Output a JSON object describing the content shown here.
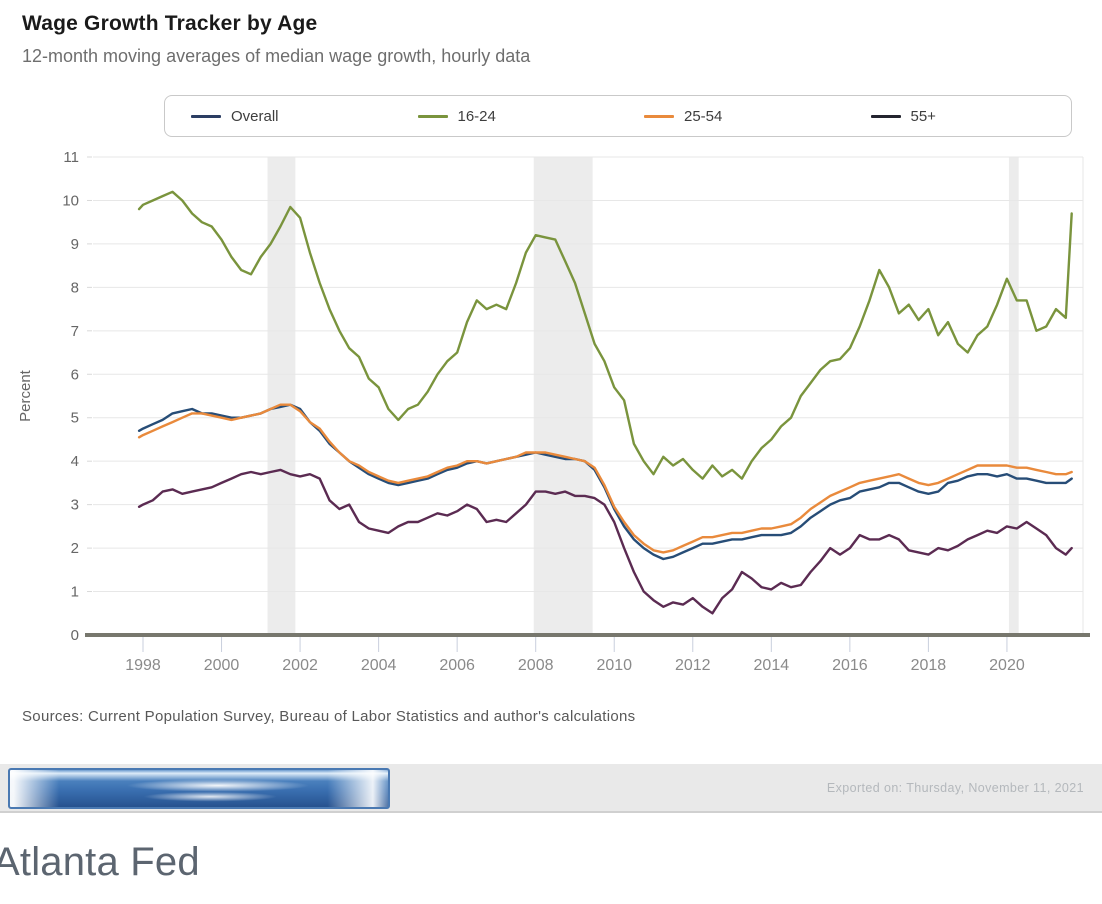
{
  "header": {
    "title": "Wage Growth Tracker by Age",
    "subtitle": "12-month moving averages of median wage growth, hourly data"
  },
  "sources": "Sources: Current Population Survey, Bureau of Labor Statistics and author's calculations",
  "footer": {
    "exported_label": "Exported on: Thursday, November 11, 2021",
    "brand": "Atlanta Fed"
  },
  "chart_data": {
    "type": "line",
    "title": "Wage Growth Tracker by Age",
    "xlabel": "",
    "ylabel": "Percent",
    "ylim": [
      0,
      11
    ],
    "ytick_step": 1,
    "xlim": [
      1996.7,
      2021.9
    ],
    "xticks": [
      1998,
      2000,
      2002,
      2004,
      2006,
      2008,
      2010,
      2012,
      2014,
      2016,
      2018,
      2020
    ],
    "grid": true,
    "legend_position": "top",
    "colors": {
      "grid": "#e7e7e7",
      "axis": "#77776d",
      "tick": "#c9cfdd",
      "tick_label": "#8a8a8a",
      "y_label": "#666666",
      "band": "#ececec"
    },
    "recession_bands": [
      {
        "start": 2001.17,
        "end": 2001.88
      },
      {
        "start": 2007.95,
        "end": 2009.45
      },
      {
        "start": 2020.05,
        "end": 2020.3
      }
    ],
    "x": [
      1997.9,
      1998,
      1998.25,
      1998.5,
      1998.75,
      1999,
      1999.25,
      1999.5,
      1999.75,
      2000,
      2000.25,
      2000.5,
      2000.75,
      2001,
      2001.25,
      2001.5,
      2001.75,
      2002,
      2002.25,
      2002.5,
      2002.75,
      2003,
      2003.25,
      2003.5,
      2003.75,
      2004,
      2004.25,
      2004.5,
      2004.75,
      2005,
      2005.25,
      2005.5,
      2005.75,
      2006,
      2006.25,
      2006.5,
      2006.75,
      2007,
      2007.25,
      2007.5,
      2007.75,
      2008,
      2008.25,
      2008.5,
      2008.75,
      2009,
      2009.25,
      2009.5,
      2009.75,
      2010,
      2010.25,
      2010.5,
      2010.75,
      2011,
      2011.25,
      2011.5,
      2011.75,
      2012,
      2012.25,
      2012.5,
      2012.75,
      2013,
      2013.25,
      2013.5,
      2013.75,
      2014,
      2014.25,
      2014.5,
      2014.75,
      2015,
      2015.25,
      2015.5,
      2015.75,
      2016,
      2016.25,
      2016.5,
      2016.75,
      2017,
      2017.25,
      2017.5,
      2017.75,
      2018,
      2018.25,
      2018.5,
      2018.75,
      2019,
      2019.25,
      2019.5,
      2019.75,
      2020,
      2020.25,
      2020.5,
      2020.75,
      2021,
      2021.25,
      2021.5,
      2021.65
    ],
    "series": [
      {
        "name": "Overall",
        "color": "#274d77",
        "legend_color": "#2c3e63",
        "values": [
          4.7,
          4.75,
          4.85,
          4.95,
          5.1,
          5.15,
          5.2,
          5.1,
          5.1,
          5.05,
          5.0,
          5.0,
          5.05,
          5.1,
          5.2,
          5.25,
          5.3,
          5.2,
          4.9,
          4.7,
          4.4,
          4.2,
          4.0,
          3.85,
          3.7,
          3.6,
          3.5,
          3.45,
          3.5,
          3.55,
          3.6,
          3.7,
          3.8,
          3.85,
          3.95,
          4.0,
          3.95,
          4.0,
          4.05,
          4.1,
          4.15,
          4.2,
          4.15,
          4.1,
          4.05,
          4.05,
          4.0,
          3.8,
          3.4,
          2.9,
          2.5,
          2.2,
          2.0,
          1.85,
          1.75,
          1.8,
          1.9,
          2.0,
          2.1,
          2.1,
          2.15,
          2.2,
          2.2,
          2.25,
          2.3,
          2.3,
          2.3,
          2.35,
          2.5,
          2.7,
          2.85,
          3.0,
          3.1,
          3.15,
          3.3,
          3.35,
          3.4,
          3.5,
          3.5,
          3.4,
          3.3,
          3.25,
          3.3,
          3.5,
          3.55,
          3.65,
          3.7,
          3.7,
          3.65,
          3.7,
          3.6,
          3.6,
          3.55,
          3.5,
          3.5,
          3.5,
          3.6
        ]
      },
      {
        "name": "16-24",
        "color": "#7a943d",
        "legend_color": "#7a943d",
        "values": [
          9.8,
          9.9,
          10.0,
          10.1,
          10.2,
          10.0,
          9.7,
          9.5,
          9.4,
          9.1,
          8.7,
          8.4,
          8.3,
          8.7,
          9.0,
          9.4,
          9.85,
          9.6,
          8.8,
          8.1,
          7.5,
          7.0,
          6.6,
          6.4,
          5.9,
          5.7,
          5.2,
          4.95,
          5.2,
          5.3,
          5.6,
          6.0,
          6.3,
          6.5,
          7.2,
          7.7,
          7.5,
          7.6,
          7.5,
          8.1,
          8.8,
          9.2,
          9.15,
          9.1,
          8.6,
          8.1,
          7.4,
          6.7,
          6.3,
          5.7,
          5.4,
          4.4,
          4.0,
          3.7,
          4.1,
          3.9,
          4.05,
          3.8,
          3.6,
          3.9,
          3.65,
          3.8,
          3.6,
          4.0,
          4.3,
          4.5,
          4.8,
          5.0,
          5.5,
          5.8,
          6.1,
          6.3,
          6.35,
          6.6,
          7.1,
          7.7,
          8.4,
          8.0,
          7.4,
          7.6,
          7.25,
          7.5,
          6.9,
          7.2,
          6.7,
          6.5,
          6.9,
          7.1,
          7.6,
          8.2,
          7.7,
          7.7,
          7.0,
          7.1,
          7.5,
          7.3,
          9.7
        ]
      },
      {
        "name": "25-54",
        "color": "#e98a3c",
        "legend_color": "#e98a3c",
        "values": [
          4.55,
          4.6,
          4.7,
          4.8,
          4.9,
          5.0,
          5.1,
          5.1,
          5.05,
          5.0,
          4.95,
          5.0,
          5.05,
          5.1,
          5.2,
          5.3,
          5.3,
          5.15,
          4.9,
          4.75,
          4.45,
          4.2,
          4.0,
          3.9,
          3.75,
          3.65,
          3.55,
          3.5,
          3.55,
          3.6,
          3.65,
          3.75,
          3.85,
          3.9,
          4.0,
          4.0,
          3.95,
          4.0,
          4.05,
          4.1,
          4.2,
          4.2,
          4.2,
          4.15,
          4.1,
          4.05,
          4.0,
          3.85,
          3.45,
          2.95,
          2.6,
          2.3,
          2.1,
          1.95,
          1.9,
          1.95,
          2.05,
          2.15,
          2.25,
          2.25,
          2.3,
          2.35,
          2.35,
          2.4,
          2.45,
          2.45,
          2.5,
          2.55,
          2.7,
          2.9,
          3.05,
          3.2,
          3.3,
          3.4,
          3.5,
          3.55,
          3.6,
          3.65,
          3.7,
          3.6,
          3.5,
          3.45,
          3.5,
          3.6,
          3.7,
          3.8,
          3.9,
          3.9,
          3.9,
          3.9,
          3.85,
          3.85,
          3.8,
          3.75,
          3.7,
          3.7,
          3.75
        ]
      },
      {
        "name": "55+",
        "color": "#5b2b52",
        "legend_color": "#23242f",
        "values": [
          2.95,
          3.0,
          3.1,
          3.3,
          3.35,
          3.25,
          3.3,
          3.35,
          3.4,
          3.5,
          3.6,
          3.7,
          3.75,
          3.7,
          3.75,
          3.8,
          3.7,
          3.65,
          3.7,
          3.6,
          3.1,
          2.9,
          3.0,
          2.6,
          2.45,
          2.4,
          2.35,
          2.5,
          2.6,
          2.6,
          2.7,
          2.8,
          2.75,
          2.85,
          3.0,
          2.9,
          2.6,
          2.65,
          2.6,
          2.8,
          3.0,
          3.3,
          3.3,
          3.25,
          3.3,
          3.2,
          3.2,
          3.15,
          3.0,
          2.6,
          2.0,
          1.45,
          1.0,
          0.8,
          0.65,
          0.75,
          0.7,
          0.85,
          0.65,
          0.5,
          0.85,
          1.05,
          1.45,
          1.3,
          1.1,
          1.05,
          1.2,
          1.1,
          1.15,
          1.45,
          1.7,
          2.0,
          1.85,
          2.0,
          2.3,
          2.2,
          2.2,
          2.3,
          2.2,
          1.95,
          1.9,
          1.85,
          2.0,
          1.95,
          2.05,
          2.2,
          2.3,
          2.4,
          2.35,
          2.5,
          2.45,
          2.6,
          2.45,
          2.3,
          2.0,
          1.85,
          2.0
        ]
      }
    ]
  }
}
